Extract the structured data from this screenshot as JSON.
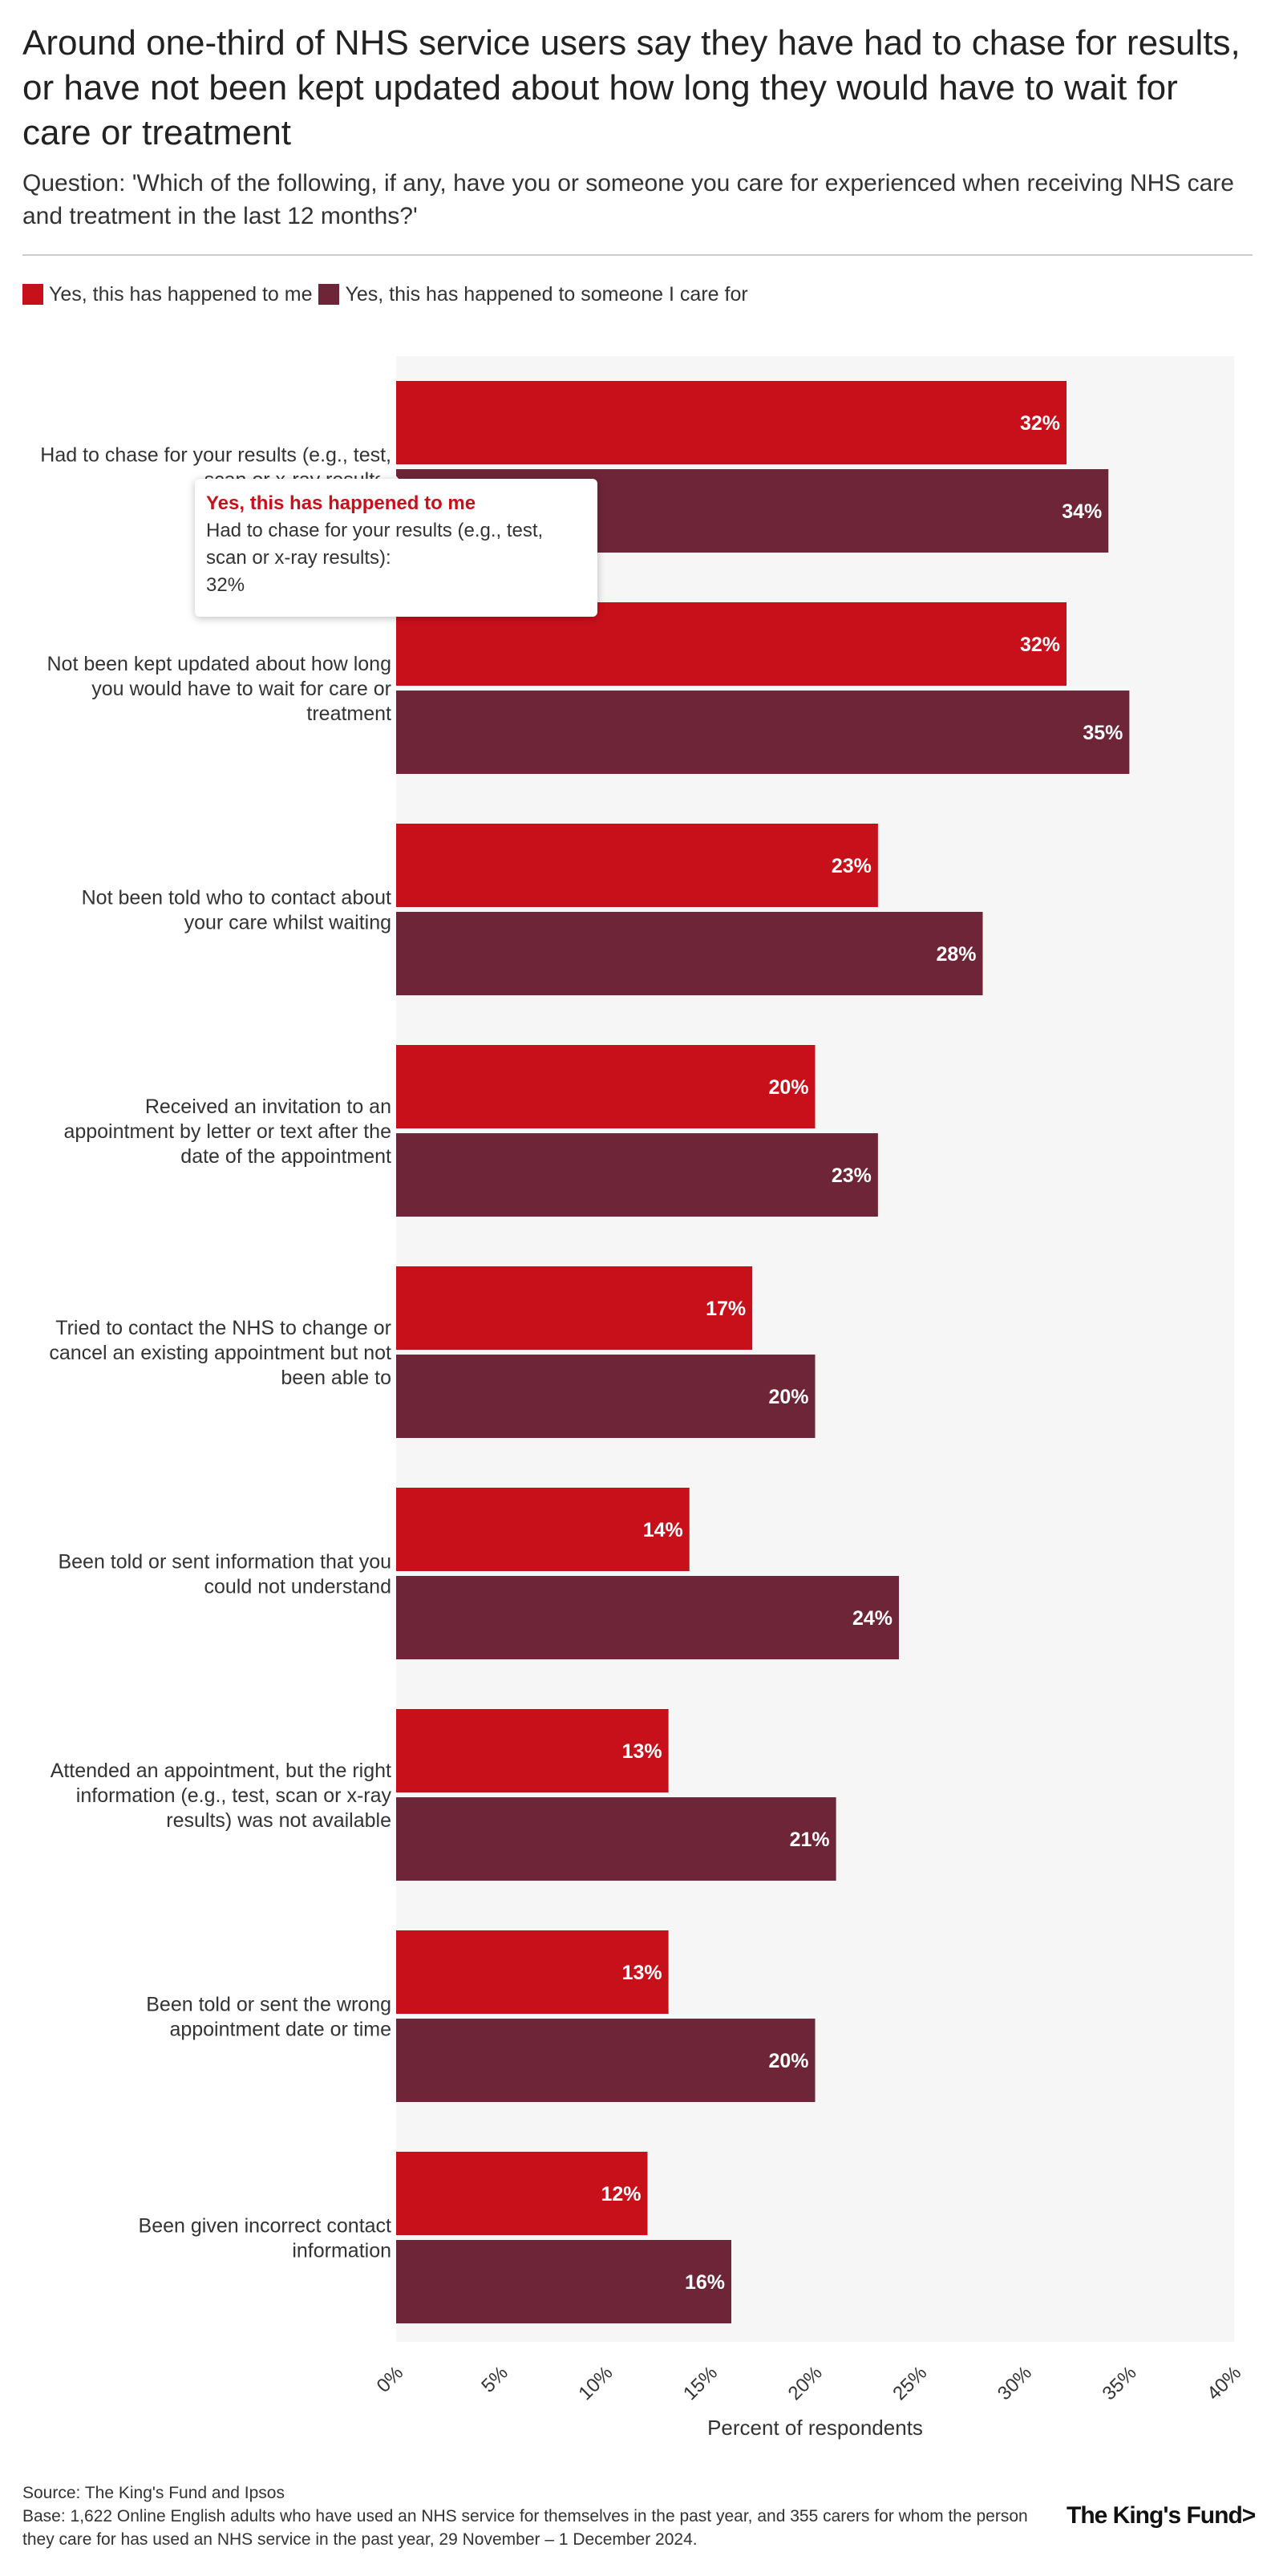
{
  "title": "Around one-third of NHS service users say they have had to chase for results, or have not been kept updated about how long they would have to wait for care or treatment",
  "subtitle": "Question: 'Which of the following, if any, have you or someone you care for experienced when receiving NHS care and treatment in the last 12 months?'",
  "colors": {
    "me": "#c8101b",
    "care": "#6e2537",
    "plot_bg": "#f6f6f6"
  },
  "chart_data": {
    "type": "bar",
    "orientation": "horizontal",
    "title": "Around one-third of NHS service users say they have had to chase for results, or have not been kept updated about how long they would have to wait for care or treatment",
    "xlabel": "Percent of respondents",
    "ylabel": "",
    "xlim": [
      0,
      40
    ],
    "x_ticks": [
      "0%",
      "5%",
      "10%",
      "15%",
      "20%",
      "25%",
      "30%",
      "35%",
      "40%"
    ],
    "legend_position": "top-left",
    "categories": [
      "Had to chase for your results (e.g., test, scan or x-ray results)",
      "Not been kept updated about how long you would have to wait for care or treatment",
      "Not been told who to contact about your care whilst waiting",
      "Received an invitation to an appointment by letter or text after the date of the appointment",
      "Tried to contact the NHS to change or cancel an existing appointment but not been able to",
      "Been told or sent information that you could not understand",
      "Attended an appointment, but the right information (e.g., test, scan or x-ray results) was not available",
      "Been told or sent the wrong appointment date or time",
      "Been given incorrect contact information"
    ],
    "category_lines": [
      [
        "Had to chase for your results (e.g., test,",
        "scan or x-ray results)"
      ],
      [
        "Not been kept updated about how long",
        "you would have to wait for care or",
        "treatment"
      ],
      [
        "Not been told who to contact about",
        "your care whilst waiting"
      ],
      [
        "Received an invitation to an",
        "appointment by letter or text after the",
        "date of the appointment"
      ],
      [
        "Tried to contact the NHS to change or",
        "cancel an existing appointment but not",
        "been able to"
      ],
      [
        "Been told or sent information that you",
        "could not understand"
      ],
      [
        "Attended an appointment, but the right",
        "information (e.g., test, scan or x-ray",
        "results) was not available"
      ],
      [
        "Been told or sent the wrong",
        "appointment date or time"
      ],
      [
        "Been given incorrect contact",
        "information"
      ]
    ],
    "series": [
      {
        "name": "Yes, this has happened to me",
        "values": [
          32,
          32,
          23,
          20,
          17,
          14,
          13,
          13,
          12
        ]
      },
      {
        "name": "Yes, this has happened to someone I care for",
        "values": [
          34,
          35,
          28,
          23,
          20,
          24,
          21,
          20,
          16
        ]
      }
    ]
  },
  "tooltip": {
    "series": "Yes, this has happened to me",
    "category": "Had to chase for your results (e.g., test, scan or x-ray results):",
    "value": "32%"
  },
  "footer": {
    "source": "Source: The King's Fund and Ipsos",
    "base": "Base: 1,622 Online English adults who have used an NHS service for themselves in the past year, and 355 carers for whom the person they care for has used an NHS service in the past year, 29 November – 1 December 2024."
  },
  "logo": "The King's Fund>"
}
